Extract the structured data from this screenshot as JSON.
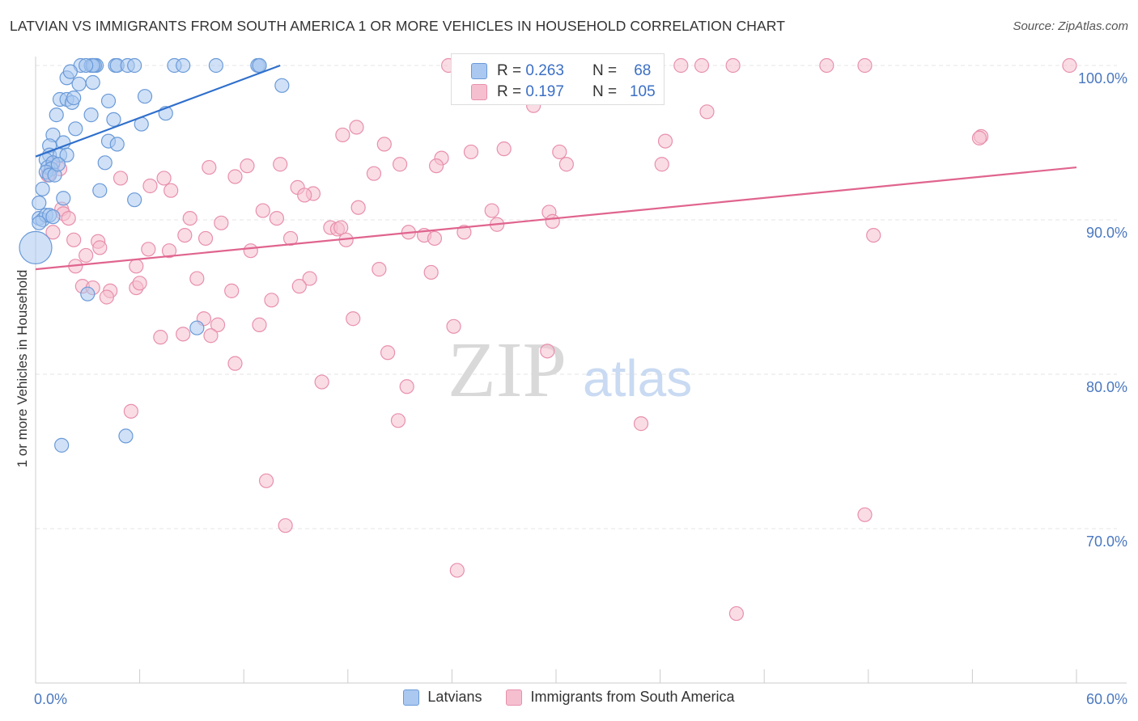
{
  "title": "LATVIAN VS IMMIGRANTS FROM SOUTH AMERICA 1 OR MORE VEHICLES IN HOUSEHOLD CORRELATION CHART",
  "source": "Source: ZipAtlas.com",
  "watermark": {
    "zip": "ZIP",
    "atlas": "atlas"
  },
  "colors": {
    "blue_fill": "#aac8f0",
    "blue_stroke": "#6a9ad8",
    "blue_line": "#2f6fcc",
    "pink_fill": "#f5bfd0",
    "pink_stroke": "#e890ac",
    "pink_line": "#e0648e",
    "tick_label": "#4a78c0"
  },
  "legend_box": {
    "rows": [
      {
        "r_label": "R = ",
        "r_value": "0.263",
        "n_label": "N = ",
        "n_value": "68"
      },
      {
        "r_label": "R = ",
        "r_value": "0.197",
        "n_label": "N = ",
        "n_value": "105"
      }
    ]
  },
  "chart_data": {
    "type": "scatter",
    "title": "LATVIAN VS IMMIGRANTS FROM SOUTH AMERICA 1 OR MORE VEHICLES IN HOUSEHOLD CORRELATION CHART",
    "xlabel": "",
    "ylabel": "1 or more Vehicles in Household",
    "xlim": [
      0,
      60
    ],
    "ylim": [
      60,
      101.5
    ],
    "x_tick_labels": [
      "0.0%",
      "60.0%"
    ],
    "y_ticks": [
      70,
      80,
      90,
      100
    ],
    "y_tick_labels": [
      "70.0%",
      "80.0%",
      "90.0%",
      "100.0%"
    ],
    "grid": "horizontal dashed",
    "legend_position": "bottom",
    "series": [
      {
        "name": "Latvians",
        "stats": {
          "R": 0.263,
          "N": 68
        },
        "trend": {
          "x": [
            0,
            14.1
          ],
          "y": [
            94.1,
            100.0
          ]
        },
        "points": [
          [
            2.6,
            100
          ],
          [
            3.2,
            100
          ],
          [
            3.5,
            100
          ],
          [
            3.3,
            100
          ],
          [
            3.4,
            100
          ],
          [
            3.3,
            100
          ],
          [
            4.6,
            100
          ],
          [
            4.7,
            100
          ],
          [
            5.3,
            100
          ],
          [
            5.7,
            100
          ],
          [
            8.0,
            100
          ],
          [
            8.5,
            100
          ],
          [
            10.4,
            100
          ],
          [
            12.8,
            100
          ],
          [
            12.9,
            100
          ],
          [
            1.8,
            99.2
          ],
          [
            2.0,
            99.6
          ],
          [
            2.5,
            98.8
          ],
          [
            3.3,
            98.9
          ],
          [
            14.2,
            98.7
          ],
          [
            1.4,
            97.8
          ],
          [
            1.8,
            97.8
          ],
          [
            2.1,
            97.6
          ],
          [
            2.2,
            97.9
          ],
          [
            4.2,
            97.7
          ],
          [
            6.3,
            98.0
          ],
          [
            1.2,
            96.8
          ],
          [
            3.2,
            96.8
          ],
          [
            4.5,
            96.5
          ],
          [
            7.5,
            96.9
          ],
          [
            6.1,
            96.2
          ],
          [
            2.3,
            95.9
          ],
          [
            1.0,
            95.5
          ],
          [
            0.8,
            94.8
          ],
          [
            1.6,
            95.0
          ],
          [
            4.2,
            95.1
          ],
          [
            4.7,
            94.9
          ],
          [
            0.8,
            94.2
          ],
          [
            1.4,
            94.2
          ],
          [
            1.8,
            94.2
          ],
          [
            4.0,
            93.7
          ],
          [
            0.6,
            93.9
          ],
          [
            0.7,
            93.4
          ],
          [
            1.0,
            93.7
          ],
          [
            0.9,
            93.3
          ],
          [
            0.6,
            93.1
          ],
          [
            0.8,
            92.9
          ],
          [
            1.1,
            92.9
          ],
          [
            0.4,
            92.0
          ],
          [
            3.7,
            91.9
          ],
          [
            1.6,
            91.4
          ],
          [
            5.7,
            91.3
          ],
          [
            0.2,
            91.1
          ],
          [
            0.2,
            90.1
          ],
          [
            0.4,
            90.0
          ],
          [
            0.6,
            90.3
          ],
          [
            0.8,
            90.3
          ],
          [
            1.0,
            90.2
          ],
          [
            0.0,
            88.2
          ],
          [
            3.0,
            85.2
          ],
          [
            9.3,
            83.0
          ],
          [
            5.2,
            76.0
          ],
          [
            1.5,
            75.4
          ],
          [
            0.2,
            89.8
          ],
          [
            1.3,
            93.6
          ],
          [
            2.9,
            100
          ],
          [
            12.9,
            100
          ]
        ],
        "sizes_note": "one large point at x≈0.0, y≈88.2"
      },
      {
        "name": "Immigrants from South America",
        "stats": {
          "R": 0.197,
          "N": 105
        },
        "trend": {
          "x": [
            0,
            60
          ],
          "y": [
            86.8,
            93.4
          ]
        },
        "points": [
          [
            23.8,
            100
          ],
          [
            35.6,
            100
          ],
          [
            37.2,
            100
          ],
          [
            38.4,
            100
          ],
          [
            40.2,
            100
          ],
          [
            45.6,
            100
          ],
          [
            47.8,
            100
          ],
          [
            59.6,
            100
          ],
          [
            28.3,
            99.2
          ],
          [
            32.8,
            98.9
          ],
          [
            30.6,
            98.6
          ],
          [
            35.2,
            98.6
          ],
          [
            31.6,
            98.0
          ],
          [
            28.4,
            97.9
          ],
          [
            28.7,
            97.4
          ],
          [
            38.7,
            97.0
          ],
          [
            18.5,
            96.0
          ],
          [
            17.7,
            95.5
          ],
          [
            20.1,
            94.9
          ],
          [
            36.3,
            95.1
          ],
          [
            54.5,
            95.4
          ],
          [
            54.4,
            95.3
          ],
          [
            27.0,
            94.6
          ],
          [
            25.1,
            94.4
          ],
          [
            30.2,
            94.4
          ],
          [
            23.4,
            94.0
          ],
          [
            21.0,
            93.6
          ],
          [
            23.1,
            93.5
          ],
          [
            36.1,
            93.6
          ],
          [
            30.6,
            93.6
          ],
          [
            12.2,
            93.5
          ],
          [
            14.1,
            93.6
          ],
          [
            10.0,
            93.4
          ],
          [
            19.5,
            93.0
          ],
          [
            11.5,
            92.8
          ],
          [
            1.0,
            93.6
          ],
          [
            0.8,
            93.0
          ],
          [
            1.4,
            93.3
          ],
          [
            0.7,
            92.9
          ],
          [
            7.4,
            92.7
          ],
          [
            4.9,
            92.7
          ],
          [
            6.6,
            92.2
          ],
          [
            15.1,
            92.1
          ],
          [
            16.0,
            91.7
          ],
          [
            15.5,
            91.6
          ],
          [
            7.8,
            91.9
          ],
          [
            18.6,
            90.8
          ],
          [
            13.1,
            90.6
          ],
          [
            26.3,
            90.6
          ],
          [
            29.6,
            90.5
          ],
          [
            1.5,
            90.7
          ],
          [
            1.6,
            90.4
          ],
          [
            1.9,
            90.1
          ],
          [
            8.9,
            90.1
          ],
          [
            10.7,
            89.8
          ],
          [
            13.9,
            90.1
          ],
          [
            29.8,
            89.9
          ],
          [
            26.6,
            89.7
          ],
          [
            17.0,
            89.5
          ],
          [
            17.4,
            89.4
          ],
          [
            17.6,
            89.5
          ],
          [
            21.5,
            89.2
          ],
          [
            22.4,
            89.0
          ],
          [
            23.0,
            88.8
          ],
          [
            24.7,
            89.2
          ],
          [
            8.6,
            89.0
          ],
          [
            9.8,
            88.8
          ],
          [
            14.7,
            88.8
          ],
          [
            1.0,
            89.2
          ],
          [
            2.2,
            88.7
          ],
          [
            3.6,
            88.6
          ],
          [
            3.7,
            88.2
          ],
          [
            6.5,
            88.1
          ],
          [
            7.7,
            88.0
          ],
          [
            12.4,
            88.0
          ],
          [
            2.9,
            87.7
          ],
          [
            2.3,
            87.0
          ],
          [
            5.8,
            87.0
          ],
          [
            17.9,
            88.7
          ],
          [
            48.3,
            89.0
          ],
          [
            19.8,
            86.8
          ],
          [
            22.8,
            86.6
          ],
          [
            9.3,
            86.2
          ],
          [
            15.8,
            86.2
          ],
          [
            15.2,
            85.7
          ],
          [
            2.7,
            85.7
          ],
          [
            5.8,
            85.6
          ],
          [
            6.0,
            85.9
          ],
          [
            11.3,
            85.4
          ],
          [
            3.3,
            85.6
          ],
          [
            4.3,
            85.4
          ],
          [
            4.1,
            85.0
          ],
          [
            13.6,
            84.8
          ],
          [
            9.7,
            83.6
          ],
          [
            10.5,
            83.2
          ],
          [
            12.9,
            83.2
          ],
          [
            18.3,
            83.6
          ],
          [
            24.1,
            83.1
          ],
          [
            7.2,
            82.4
          ],
          [
            8.5,
            82.6
          ],
          [
            10.1,
            82.5
          ],
          [
            20.3,
            81.4
          ],
          [
            29.5,
            81.5
          ],
          [
            11.5,
            80.7
          ],
          [
            16.5,
            79.5
          ],
          [
            21.4,
            79.2
          ],
          [
            5.5,
            77.6
          ],
          [
            20.9,
            77.0
          ],
          [
            34.9,
            76.8
          ],
          [
            13.3,
            73.1
          ],
          [
            14.4,
            70.2
          ],
          [
            47.8,
            70.9
          ],
          [
            24.3,
            67.3
          ],
          [
            40.4,
            64.5
          ]
        ],
        "sizes_note": "scatter points of equal size"
      }
    ]
  }
}
